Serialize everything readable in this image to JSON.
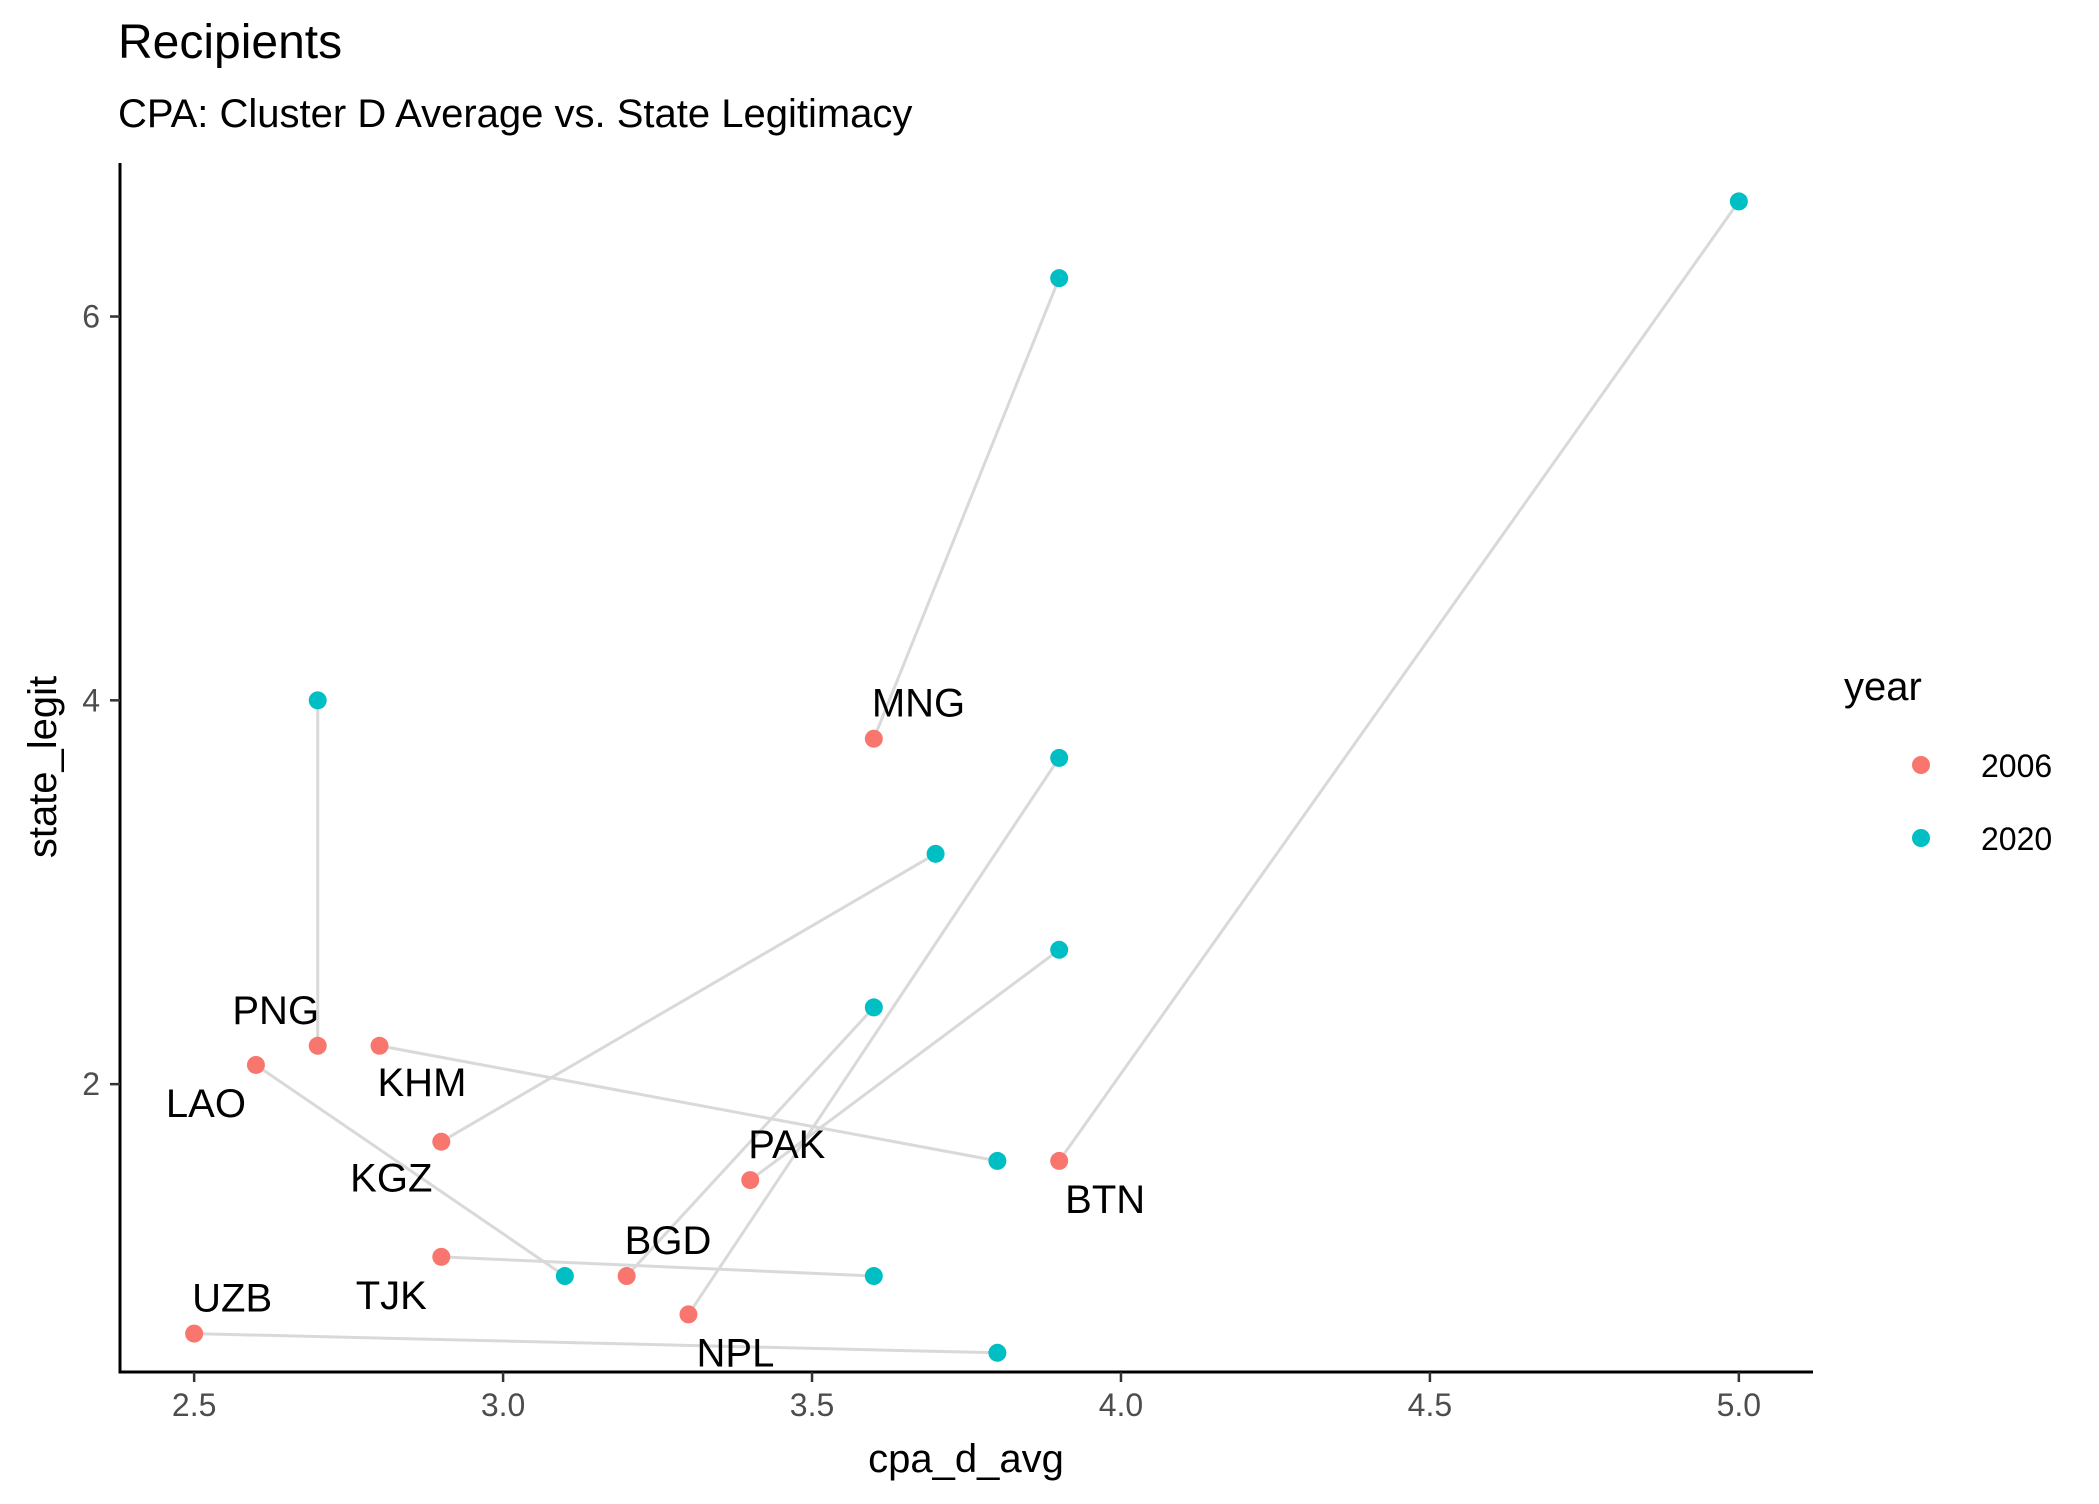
{
  "chart_data": {
    "type": "scatter",
    "title": "Recipients",
    "subtitle": "CPA: Cluster D Average vs. State Legitimacy",
    "xlabel": "cpa_d_avg",
    "ylabel": "state_legit",
    "xlim": [
      2.38,
      5.12
    ],
    "ylim": [
      0.5,
      6.8
    ],
    "x_ticks": [
      2.5,
      3.0,
      3.5,
      4.0,
      4.5,
      5.0
    ],
    "x_tick_labels": [
      "2.5",
      "3.0",
      "3.5",
      "4.0",
      "4.5",
      "5.0"
    ],
    "y_ticks": [
      2,
      4,
      6
    ],
    "y_tick_labels": [
      "2",
      "4",
      "6"
    ],
    "grid": false,
    "legend": {
      "title": "year",
      "position": "right",
      "entries": [
        {
          "label": "2006",
          "color": "#F8766D"
        },
        {
          "label": "2020",
          "color": "#00BFC4"
        }
      ]
    },
    "connector_color": "#d9d9d9",
    "series": [
      {
        "name": "2006",
        "color": "#F8766D",
        "points": [
          {
            "country": "MNG",
            "x": 3.6,
            "y": 3.8
          },
          {
            "country": "PNG",
            "x": 2.7,
            "y": 2.2
          },
          {
            "country": "LAO",
            "x": 2.6,
            "y": 2.1
          },
          {
            "country": "KHM",
            "x": 2.8,
            "y": 2.2
          },
          {
            "country": "KGZ",
            "x": 2.9,
            "y": 1.7
          },
          {
            "country": "PAK",
            "x": 3.4,
            "y": 1.5
          },
          {
            "country": "BTN",
            "x": 3.9,
            "y": 1.6
          },
          {
            "country": "BGD",
            "x": 3.2,
            "y": 1.0
          },
          {
            "country": "TJK",
            "x": 2.9,
            "y": 1.1
          },
          {
            "country": "NPL",
            "x": 3.3,
            "y": 0.8
          },
          {
            "country": "UZB",
            "x": 2.5,
            "y": 0.7
          }
        ]
      },
      {
        "name": "2020",
        "color": "#00BFC4",
        "points": [
          {
            "country": "MNG",
            "x": 3.9,
            "y": 6.2
          },
          {
            "country": "PNG",
            "x": 2.7,
            "y": 4.0
          },
          {
            "country": "LAO",
            "x": 3.1,
            "y": 1.0
          },
          {
            "country": "KHM",
            "x": 3.8,
            "y": 1.6
          },
          {
            "country": "KGZ",
            "x": 3.7,
            "y": 3.2
          },
          {
            "country": "PAK",
            "x": 3.9,
            "y": 2.7
          },
          {
            "country": "BTN",
            "x": 5.0,
            "y": 6.6
          },
          {
            "country": "BGD",
            "x": 3.6,
            "y": 2.4
          },
          {
            "country": "TJK",
            "x": 3.6,
            "y": 1.0
          },
          {
            "country": "NPL",
            "x": 3.9,
            "y": 3.7
          },
          {
            "country": "UZB",
            "x": 3.8,
            "y": 0.6
          }
        ]
      }
    ],
    "point_labels": [
      {
        "text": "MNG",
        "placement": "above-right"
      },
      {
        "text": "PNG",
        "placement": "above-left"
      },
      {
        "text": "LAO",
        "placement": "below-left"
      },
      {
        "text": "KHM",
        "placement": "below-right"
      },
      {
        "text": "KGZ",
        "placement": "below-left"
      },
      {
        "text": "PAK",
        "placement": "above-right"
      },
      {
        "text": "BTN",
        "placement": "below-right"
      },
      {
        "text": "BGD",
        "placement": "above-right"
      },
      {
        "text": "TJK",
        "placement": "below-left"
      },
      {
        "text": "NPL",
        "placement": "below-right"
      },
      {
        "text": "UZB",
        "placement": "above-right"
      }
    ]
  }
}
